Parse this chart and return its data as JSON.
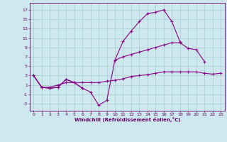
{
  "xlabel": "Windchill (Refroidissement éolien,°C)",
  "background_color": "#cde8ee",
  "grid_color": "#aacccc",
  "line_color": "#880088",
  "xlim": [
    -0.5,
    23.5
  ],
  "ylim": [
    -4.5,
    18.5
  ],
  "xticks": [
    0,
    1,
    2,
    3,
    4,
    5,
    6,
    7,
    8,
    9,
    10,
    11,
    12,
    13,
    14,
    15,
    16,
    17,
    18,
    19,
    20,
    21,
    22,
    23
  ],
  "yticks": [
    -3,
    -1,
    1,
    3,
    5,
    7,
    9,
    11,
    13,
    15,
    17
  ],
  "hours": [
    0,
    1,
    2,
    3,
    4,
    5,
    6,
    7,
    8,
    9,
    10,
    11,
    12,
    13,
    14,
    15,
    16,
    17,
    18,
    19,
    20,
    21,
    22,
    23
  ],
  "line1": [
    3.0,
    0.5,
    0.3,
    0.5,
    2.2,
    1.5,
    0.3,
    -0.5,
    -3.3,
    -2.3,
    6.3,
    10.3,
    12.5,
    14.5,
    16.2,
    16.5,
    17.0,
    14.5,
    10.2,
    null,
    null,
    null,
    null,
    null
  ],
  "line2": [
    3.0,
    0.5,
    0.3,
    0.5,
    2.2,
    1.5,
    0.3,
    null,
    null,
    null,
    6.3,
    7.0,
    7.5,
    8.0,
    8.5,
    9.0,
    9.5,
    10.0,
    10.0,
    8.8,
    8.5,
    6.0,
    null,
    null
  ],
  "line3": [
    3.0,
    0.5,
    0.5,
    1.0,
    1.5,
    1.5,
    1.5,
    1.5,
    1.5,
    1.8,
    2.0,
    2.3,
    2.8,
    3.0,
    3.2,
    3.5,
    3.8,
    3.8,
    3.8,
    3.8,
    3.8,
    3.5,
    3.3,
    3.5
  ]
}
